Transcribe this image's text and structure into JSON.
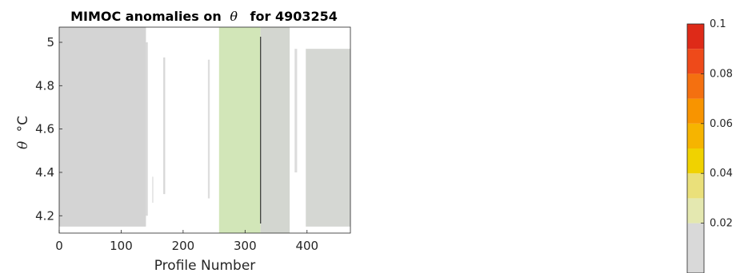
{
  "chart_data": {
    "type": "heatmap",
    "title_prefix": "MIMOC anomalies on",
    "title_symbol": "θ",
    "title_suffix": "for 4903254",
    "xlabel": "Profile Number",
    "ylabel_symbol": "θ",
    "ylabel_unit": "°C",
    "xlim": [
      0,
      470
    ],
    "ylim": [
      4.12,
      5.07
    ],
    "xticks": [
      0,
      100,
      200,
      300,
      400
    ],
    "yticks": [
      4.2,
      4.4,
      4.6,
      4.8,
      5
    ],
    "xtick_labels": [
      "0",
      "100",
      "200",
      "300",
      "400"
    ],
    "ytick_labels": [
      "4.2",
      "4.4",
      "4.6",
      "4.8",
      "5"
    ],
    "grid": false,
    "columns": [
      {
        "x": [
          0,
          140
        ],
        "ymin": 4.15,
        "ymax": 5.07,
        "color": "#d4d4d4"
      },
      {
        "x": [
          140,
          143
        ],
        "ymin": 4.2,
        "ymax": 5.0,
        "color": "#d8d8d8"
      },
      {
        "x": [
          150,
          152
        ],
        "ymin": 4.26,
        "ymax": 4.38,
        "color": "#e2e2e2"
      },
      {
        "x": [
          168,
          171
        ],
        "ymin": 4.3,
        "ymax": 4.93,
        "color": "#d8d8d8"
      },
      {
        "x": [
          240,
          243
        ],
        "ymin": 4.28,
        "ymax": 4.92,
        "color": "#dedede"
      },
      {
        "x": [
          258,
          325
        ],
        "ymin": 4.12,
        "ymax": 5.07,
        "color": "#d2e6b8"
      },
      {
        "x": [
          325,
          372
        ],
        "ymin": 4.12,
        "ymax": 5.07,
        "color": "#d3d6d0"
      },
      {
        "x": [
          380,
          384
        ],
        "ymin": 4.4,
        "ymax": 4.97,
        "color": "#dcdcdc"
      },
      {
        "x": [
          398,
          470
        ],
        "ymin": 4.15,
        "ymax": 4.97,
        "color": "#d5d7d3"
      }
    ],
    "black_line_x": 325,
    "colorbar": {
      "min": 0,
      "max": 0.1,
      "ticks": [
        0.02,
        0.04,
        0.06,
        0.08,
        0.1
      ],
      "tick_labels": [
        "0.02",
        "0.04",
        "0.06",
        "0.08",
        "0.1"
      ],
      "stops": [
        {
          "value": 0.0,
          "color": "#d9d9d9"
        },
        {
          "value": 0.02,
          "color": "#e4e8b0"
        },
        {
          "value": 0.03,
          "color": "#eae07a"
        },
        {
          "value": 0.04,
          "color": "#f0d200"
        },
        {
          "value": 0.05,
          "color": "#f6b400"
        },
        {
          "value": 0.06,
          "color": "#f89400"
        },
        {
          "value": 0.07,
          "color": "#f47010"
        },
        {
          "value": 0.08,
          "color": "#ee4a1a"
        },
        {
          "value": 0.09,
          "color": "#de2a18"
        },
        {
          "value": 0.1,
          "color": "#c4000c"
        }
      ]
    }
  }
}
